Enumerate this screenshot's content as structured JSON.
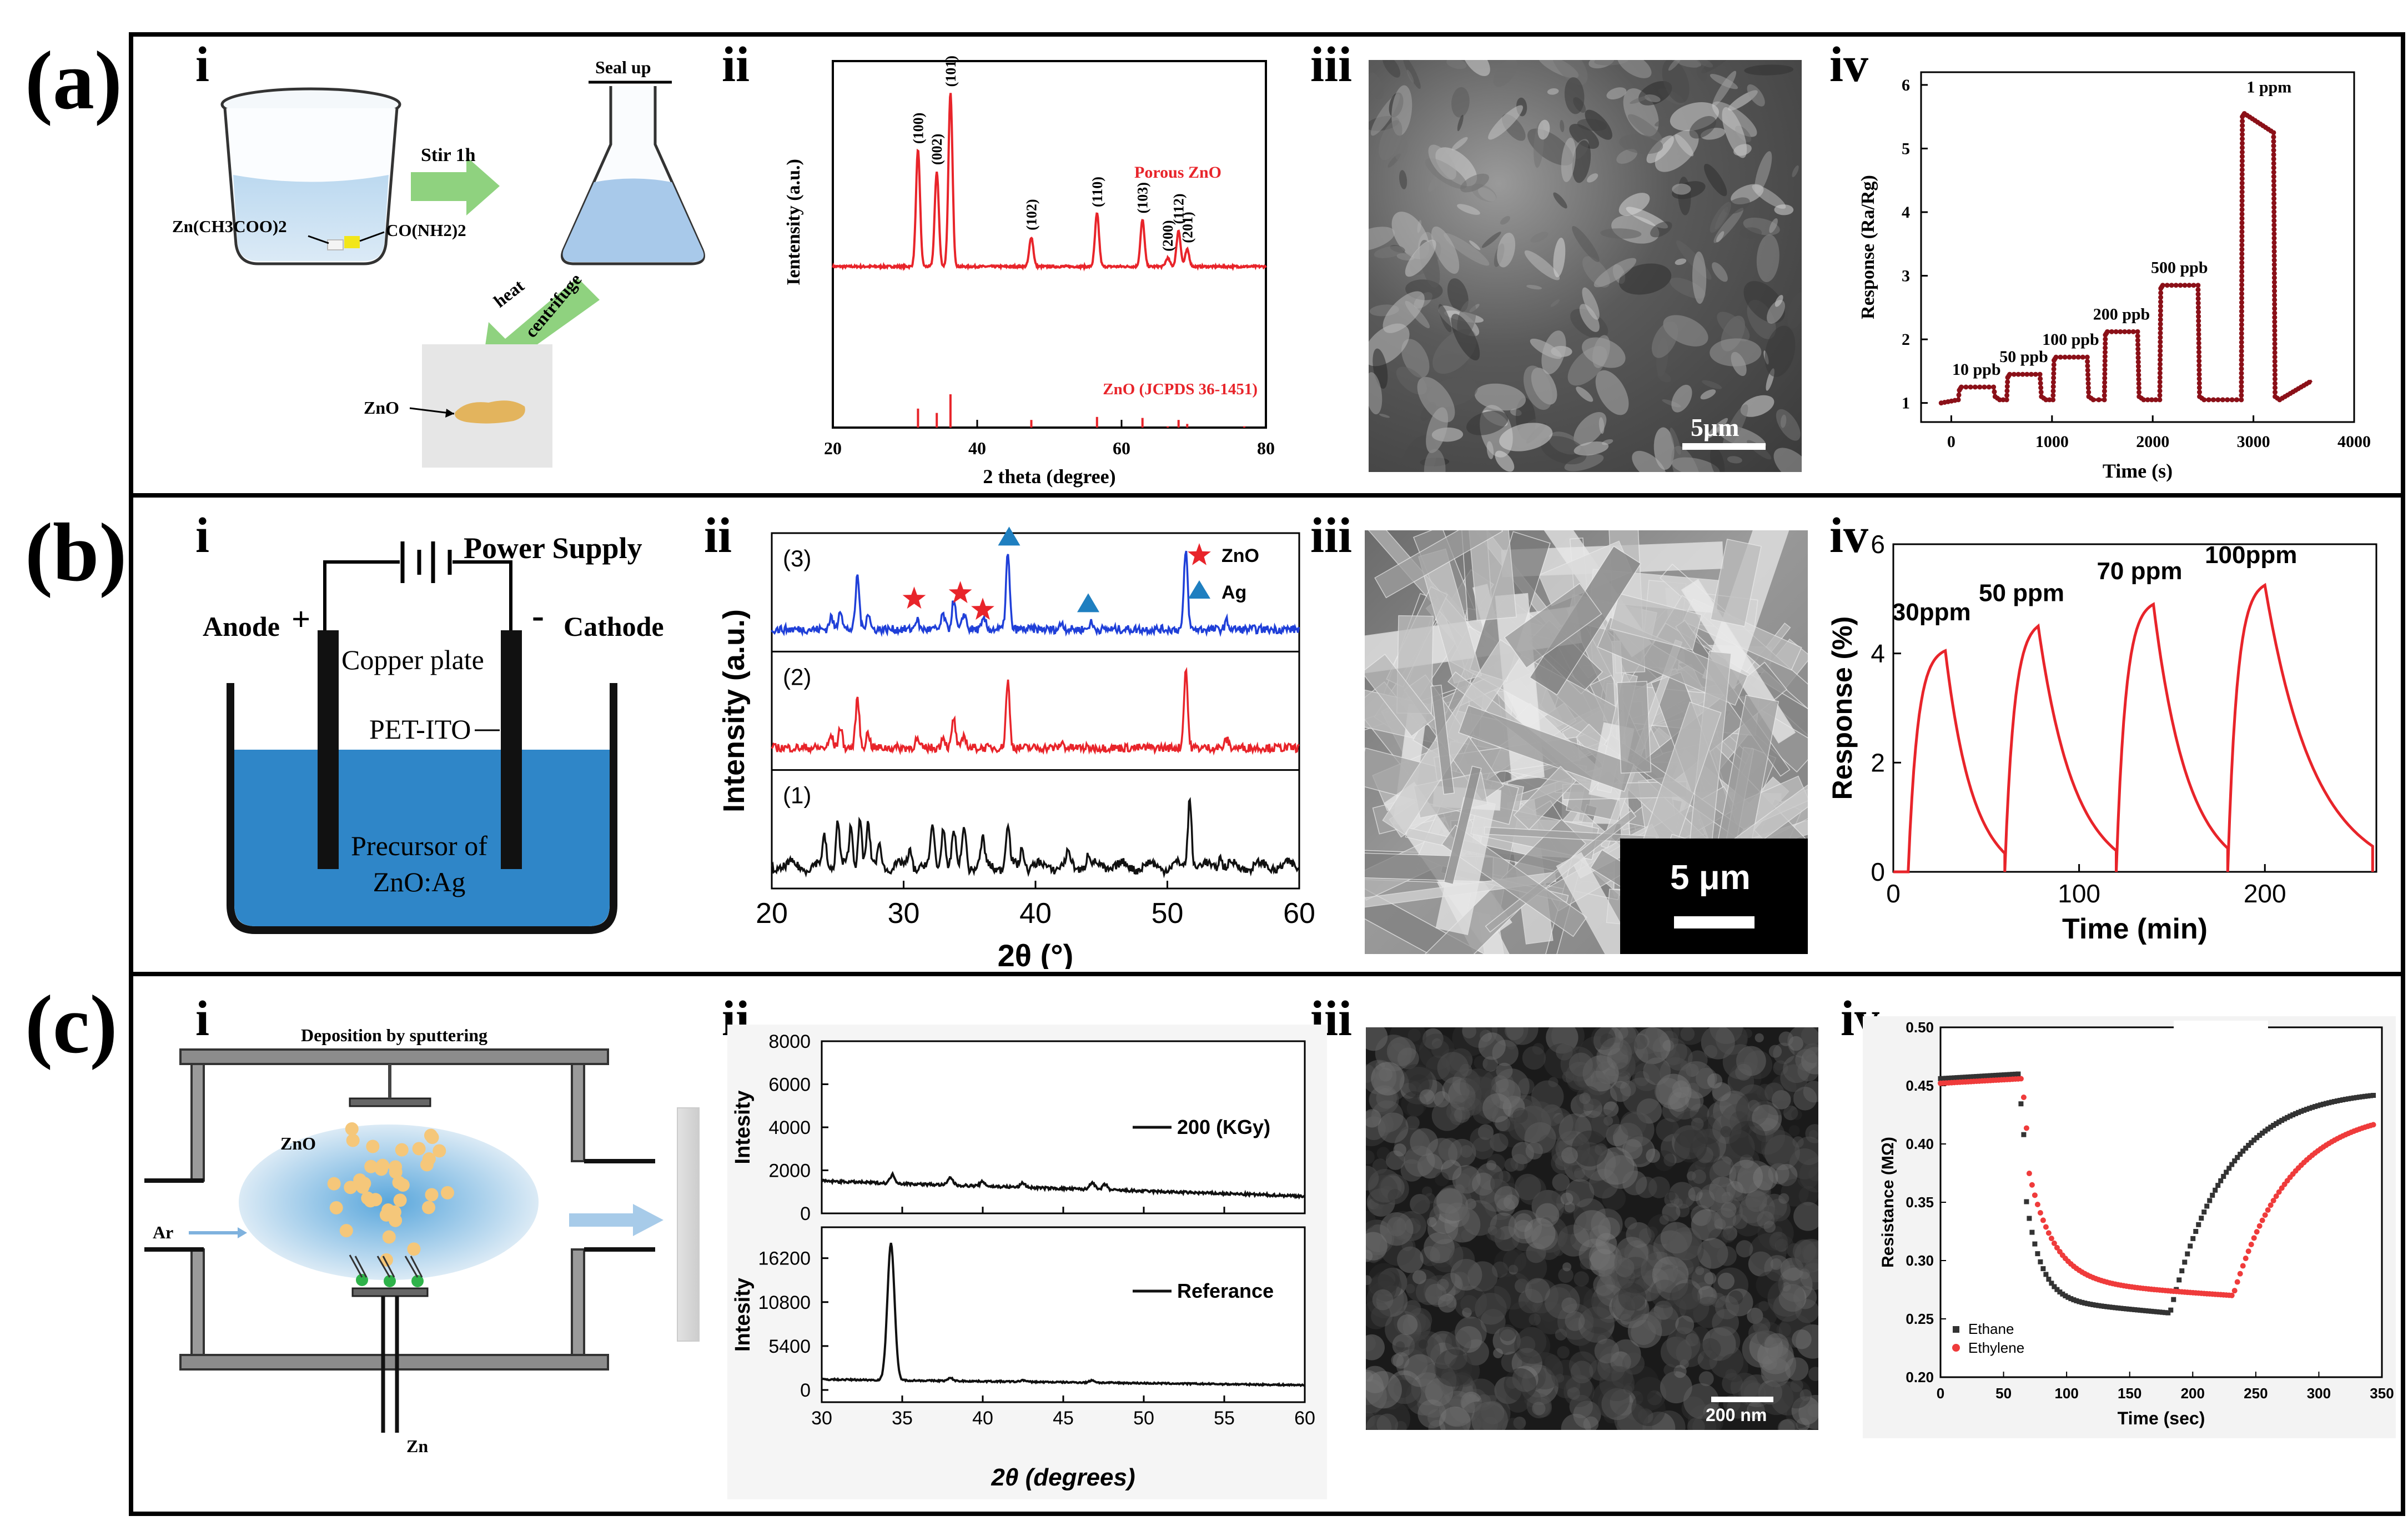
{
  "rows": [
    {
      "label": "(a)",
      "panels": [
        "i",
        "ii",
        "iii",
        "iv"
      ]
    },
    {
      "label": "(b)",
      "panels": [
        "i",
        "ii",
        "iii",
        "iv"
      ]
    },
    {
      "label": "(c)",
      "panels": [
        "i",
        "ii",
        "iii",
        "iv"
      ]
    }
  ],
  "colors": {
    "red": "#e8242a",
    "darkred": "#8b1018",
    "blue": "#1f3fd8",
    "black": "#111111",
    "green": "#7cc06a",
    "water": "#2f86c8"
  },
  "a_i": {
    "seal": "Seal up",
    "stir": "Stir 1h",
    "zn_acetate": "Zn(CH3COO)2",
    "urea": "CO(NH2)2",
    "heat": "heat",
    "centrifuge": "centrifuge",
    "zno": "ZnO"
  },
  "a_ii": {
    "chart_data": {
      "type": "line",
      "xlabel": "2 theta (degree)",
      "ylabel": "Ientensity (a.u.)",
      "xlim": [
        20,
        80
      ],
      "xticks": [
        20,
        40,
        60,
        80
      ],
      "series": [
        {
          "name": "Porous ZnO"
        }
      ],
      "peaks": [
        {
          "x": 31.8,
          "h": 0.55,
          "label": "(100)"
        },
        {
          "x": 34.4,
          "h": 0.45,
          "label": "(002)"
        },
        {
          "x": 36.3,
          "h": 0.82,
          "label": "(101)"
        },
        {
          "x": 47.5,
          "h": 0.14,
          "label": "(102)"
        },
        {
          "x": 56.6,
          "h": 0.25,
          "label": "(110)"
        },
        {
          "x": 62.9,
          "h": 0.22,
          "label": "(103)"
        },
        {
          "x": 66.4,
          "h": 0.04,
          "label": "(200)"
        },
        {
          "x": 67.9,
          "h": 0.17,
          "label": "(112)"
        },
        {
          "x": 69.1,
          "h": 0.08,
          "label": "(201)"
        }
      ],
      "reference": {
        "name": "ZnO (JCPDS 36-1451)",
        "lines": [
          {
            "x": 31.8,
            "h": 0.57
          },
          {
            "x": 34.4,
            "h": 0.44
          },
          {
            "x": 36.3,
            "h": 1.0
          },
          {
            "x": 47.5,
            "h": 0.23
          },
          {
            "x": 56.6,
            "h": 0.32
          },
          {
            "x": 62.9,
            "h": 0.29
          },
          {
            "x": 66.4,
            "h": 0.04
          },
          {
            "x": 67.9,
            "h": 0.23
          },
          {
            "x": 69.1,
            "h": 0.11
          },
          {
            "x": 77.0,
            "h": 0.04
          }
        ]
      }
    }
  },
  "a_iii": {
    "scale": "5μm"
  },
  "a_iv": {
    "chart_data": {
      "type": "line",
      "xlabel": "Time (s)",
      "ylabel": "Response (Ra/Rg)",
      "xlim": [
        -300,
        4000
      ],
      "ylim": [
        0.7,
        6.2
      ],
      "xticks": [
        0,
        1000,
        2000,
        3000,
        4000
      ],
      "yticks": [
        1,
        2,
        3,
        4,
        5,
        6
      ],
      "pulses": [
        {
          "label": "10 ppb",
          "start": 80,
          "end": 420,
          "peak": 1.25
        },
        {
          "label": "50 ppb",
          "start": 560,
          "end": 880,
          "peak": 1.45
        },
        {
          "label": "100 ppb",
          "start": 1020,
          "end": 1350,
          "peak": 1.72
        },
        {
          "label": "200 ppb",
          "start": 1530,
          "end": 1850,
          "peak": 2.12
        },
        {
          "label": "500 ppb",
          "start": 2080,
          "end": 2450,
          "peak": 2.85
        },
        {
          "label": "1 ppm",
          "start": 2890,
          "end": 3200,
          "peak": 5.55,
          "peak_end": 5.25
        }
      ],
      "baseline": 1.0,
      "final": 1.35
    }
  },
  "b_i": {
    "power": "Power Supply",
    "anode": "Anode",
    "cathode": "Cathode",
    "plus": "+",
    "minus": "-",
    "copper": "Copper plate",
    "pet": "PET-ITO",
    "precursor1": "Precursor of",
    "precursor2": "ZnO:Ag"
  },
  "b_ii": {
    "chart_data": {
      "type": "line",
      "xlabel": "2θ (°)",
      "ylabel": "Intensity (a.u.)",
      "xlim": [
        20,
        60
      ],
      "xticks": [
        20,
        30,
        40,
        50,
        60
      ],
      "series": [
        {
          "name": "(3)",
          "color": "#1f3fd8",
          "peaks": [
            [
              24.5,
              0.15
            ],
            [
              25.2,
              0.25
            ],
            [
              26.5,
              0.65
            ],
            [
              27.3,
              0.2
            ],
            [
              31.0,
              0.12
            ],
            [
              33.0,
              0.18
            ],
            [
              33.8,
              0.35
            ],
            [
              34.6,
              0.2
            ],
            [
              36.1,
              0.12
            ],
            [
              37.9,
              0.9
            ],
            [
              42.0,
              0.08
            ],
            [
              44.2,
              0.08
            ],
            [
              51.4,
              0.95
            ],
            [
              54.5,
              0.1
            ]
          ]
        },
        {
          "name": "(2)",
          "color": "#e8242a",
          "peaks": [
            [
              24.5,
              0.15
            ],
            [
              25.2,
              0.25
            ],
            [
              26.5,
              0.6
            ],
            [
              27.3,
              0.18
            ],
            [
              31.0,
              0.1
            ],
            [
              33.0,
              0.14
            ],
            [
              33.8,
              0.35
            ],
            [
              34.6,
              0.15
            ],
            [
              37.9,
              0.8
            ],
            [
              42.0,
              0.06
            ],
            [
              51.4,
              0.95
            ],
            [
              54.5,
              0.1
            ]
          ]
        },
        {
          "name": "(1)",
          "color": "#111111",
          "peaks": [
            [
              24.0,
              0.35
            ],
            [
              25.0,
              0.55
            ],
            [
              26.0,
              0.45
            ],
            [
              26.7,
              0.6
            ],
            [
              27.3,
              0.5
            ],
            [
              28.2,
              0.25
            ],
            [
              30.5,
              0.2
            ],
            [
              32.2,
              0.45
            ],
            [
              33.0,
              0.5
            ],
            [
              33.8,
              0.4
            ],
            [
              34.6,
              0.5
            ],
            [
              36.0,
              0.3
            ],
            [
              37.9,
              0.5
            ],
            [
              39.0,
              0.25
            ],
            [
              42.5,
              0.15
            ],
            [
              44.0,
              0.15
            ],
            [
              51.7,
              0.85
            ],
            [
              54.0,
              0.15
            ]
          ]
        }
      ],
      "legend": [
        {
          "name": "ZnO",
          "marker": "star",
          "color": "#e8242a"
        },
        {
          "name": "Ag",
          "marker": "triangle",
          "color": "#1f7fc0"
        }
      ],
      "markers": [
        {
          "type": "star",
          "x": 30.8,
          "trace": 0,
          "dy": -55
        },
        {
          "type": "star",
          "x": 34.3,
          "trace": 0,
          "dy": -65
        },
        {
          "type": "star",
          "x": 36.0,
          "trace": 0,
          "dy": -35
        },
        {
          "type": "triangle",
          "x": 38.0,
          "trace": 0,
          "dy": -165
        },
        {
          "type": "triangle",
          "x": 44.0,
          "trace": 0,
          "dy": -45
        }
      ]
    }
  },
  "b_iii": {
    "scale": "5 μm"
  },
  "b_iv": {
    "chart_data": {
      "type": "line",
      "xlabel": "Time (min)",
      "ylabel": "Response (%)",
      "xlim": [
        0,
        260
      ],
      "ylim": [
        0,
        6
      ],
      "xticks": [
        0,
        100,
        200
      ],
      "yticks": [
        0,
        2,
        4,
        6
      ],
      "pulses": [
        {
          "label": "30ppm",
          "start": 8,
          "peak_t": 28,
          "peak": 4.05,
          "end": 60
        },
        {
          "label": "50 ppm",
          "start": 60,
          "peak_t": 78,
          "peak": 4.5,
          "end": 120
        },
        {
          "label": "70 ppm",
          "start": 120,
          "peak_t": 140,
          "peak": 4.9,
          "end": 180
        },
        {
          "label": "100ppm",
          "start": 180,
          "peak_t": 200,
          "peak": 5.25,
          "end": 258
        }
      ]
    }
  },
  "c_i": {
    "title": "Deposition by sputtering",
    "zno": "ZnO",
    "ar": "Ar",
    "zn": "Zn"
  },
  "c_ii": {
    "chart_data": {
      "type": "line",
      "xlabel": "2θ (degrees)",
      "xlim": [
        30,
        60
      ],
      "xticks": [
        30,
        35,
        40,
        45,
        50,
        55,
        60
      ],
      "subplots": [
        {
          "name": "200 (KGy)",
          "ylabel": "Intesity",
          "ylim": [
            0,
            8000
          ],
          "yticks": [
            0,
            2000,
            4000,
            6000,
            8000
          ],
          "baseline": 1500,
          "end": 800,
          "peaks": [
            [
              34.4,
              400
            ],
            [
              38.0,
              350
            ],
            [
              40.0,
              200
            ],
            [
              42.5,
              200
            ],
            [
              46.8,
              350
            ],
            [
              47.6,
              250
            ]
          ]
        },
        {
          "name": "Referance",
          "ylabel": "Intesity",
          "ylim": [
            -1500,
            20000
          ],
          "yticks": [
            0,
            5400,
            10800,
            16200
          ],
          "baseline": 1300,
          "end": 600,
          "peaks": [
            [
              34.3,
              16800
            ],
            [
              38.0,
              350
            ],
            [
              42.5,
              200
            ],
            [
              46.8,
              300
            ]
          ]
        }
      ]
    }
  },
  "c_iii": {
    "scale": "200 nm"
  },
  "c_iv": {
    "chart_data": {
      "type": "scatter",
      "xlabel": "Time (sec)",
      "ylabel": "Resistance (MΩ)",
      "xlim": [
        0,
        350
      ],
      "ylim": [
        0.2,
        0.5
      ],
      "xticks": [
        0,
        50,
        100,
        150,
        200,
        250,
        300,
        350
      ],
      "yticks": [
        0.2,
        0.25,
        0.3,
        0.35,
        0.4,
        0.45,
        0.5
      ],
      "series": [
        {
          "name": "Ethane",
          "color": "#333333",
          "start": 0.456,
          "drop_t": 62,
          "tau": 12,
          "min": 0.255,
          "rise_t": 182,
          "recover": 0.447
        },
        {
          "name": "Ethylene",
          "color": "#ef3b3b",
          "start": 0.452,
          "drop_t": 65,
          "tau": 20,
          "min": 0.27,
          "rise_t": 232,
          "recover": 0.43
        }
      ]
    }
  }
}
